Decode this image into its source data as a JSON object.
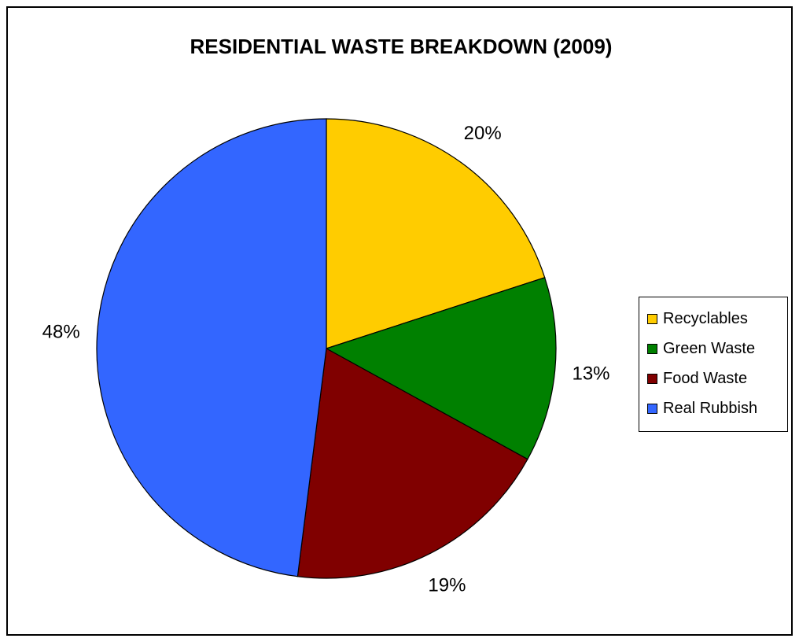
{
  "chart_data": {
    "type": "pie",
    "title": "RESIDENTIAL WASTE BREAKDOWN (2009)",
    "slices": [
      {
        "label": "Recyclables",
        "value": 20,
        "display": "20%",
        "color": "#FFCC00"
      },
      {
        "label": "Green Waste",
        "value": 13,
        "display": "13%",
        "color": "#008000"
      },
      {
        "label": "Food Waste",
        "value": 19,
        "display": "19%",
        "color": "#800000"
      },
      {
        "label": "Real Rubbish",
        "value": 48,
        "display": "48%",
        "color": "#3366FF"
      }
    ],
    "legend_position": "right"
  }
}
